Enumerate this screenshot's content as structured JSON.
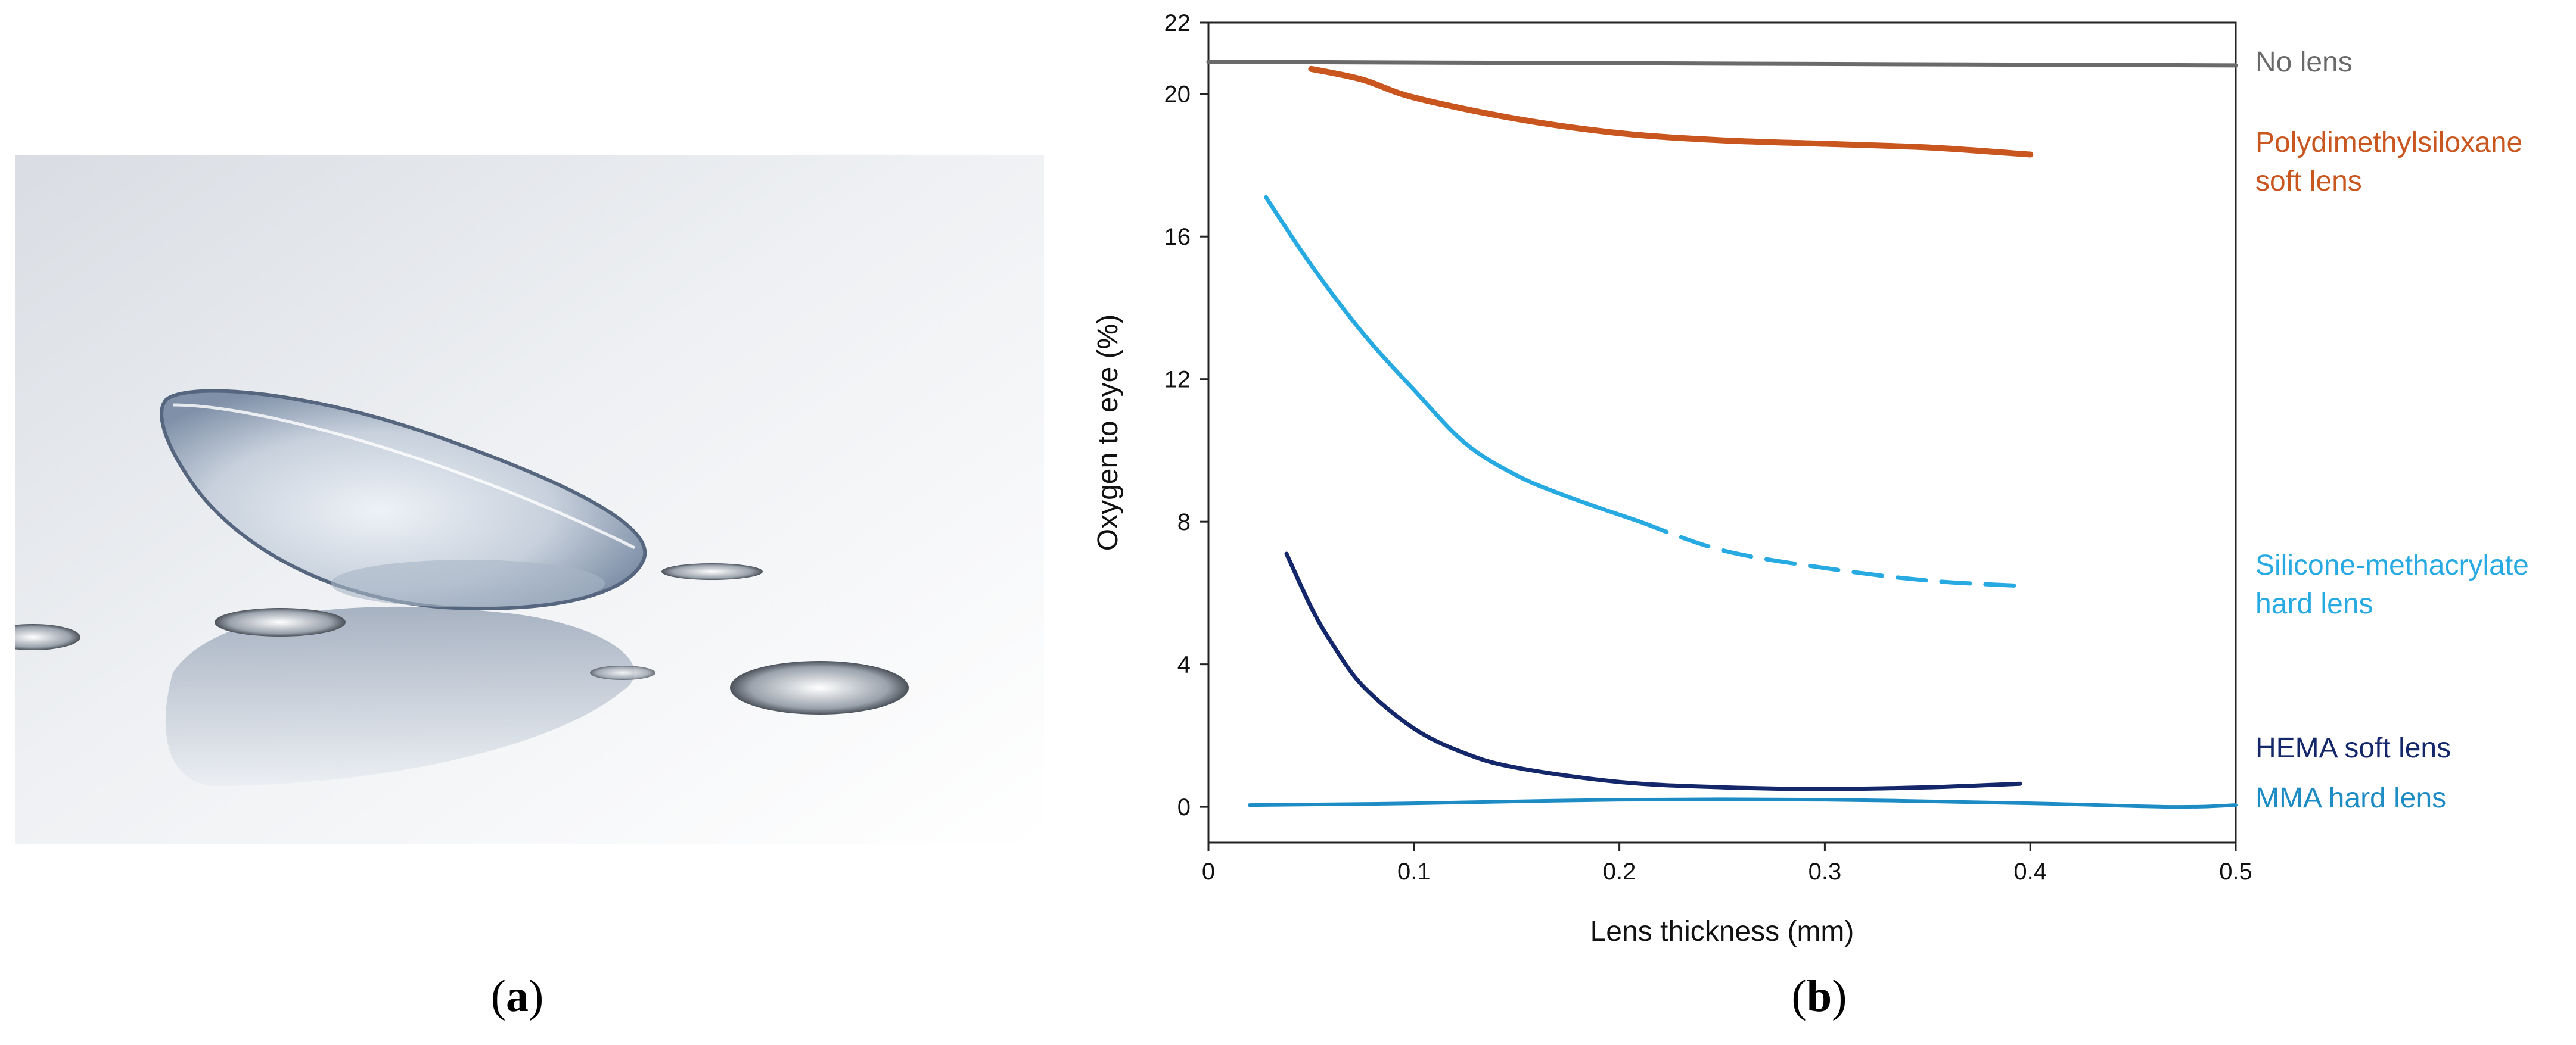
{
  "panels": {
    "a": {
      "label_letter": "a",
      "description_visible": false
    },
    "b": {
      "label_letter": "b"
    }
  },
  "colors": {
    "no_lens": "#6a6a6a",
    "pdms": "#c8561e",
    "silicone": "#27a9e1",
    "hema": "#14276b",
    "mma": "#1d8bc4"
  },
  "chart_data": {
    "type": "line",
    "title": "",
    "xlabel": "Lens thickness (mm)",
    "ylabel": "Oxygen to eye (%)",
    "xlim": [
      0,
      0.5
    ],
    "ylim": [
      -1,
      22
    ],
    "x_ticks": [
      0,
      0.1,
      0.2,
      0.3,
      0.4,
      0.5
    ],
    "x_tick_labels": [
      "0",
      "0.1",
      "0.2",
      "0.3",
      "0.4",
      "0.5"
    ],
    "y_ticks": [
      0,
      4,
      8,
      12,
      16,
      20,
      22
    ],
    "y_tick_labels": [
      "0",
      "4",
      "8",
      "12",
      "16",
      "20",
      "22"
    ],
    "grid": false,
    "legend": "inline labels at right",
    "series": [
      {
        "name": "No lens",
        "label_lines": [
          "No lens"
        ],
        "color_key": "no_lens",
        "style": "solid",
        "points": [
          [
            0,
            20.9
          ],
          [
            0.5,
            20.8
          ]
        ]
      },
      {
        "name": "Polydimethylsiloxane soft lens",
        "label_lines": [
          "Polydimethylsiloxane",
          "soft lens"
        ],
        "color_key": "pdms",
        "style": "solid",
        "points": [
          [
            0.05,
            20.7
          ],
          [
            0.075,
            20.4
          ],
          [
            0.1,
            19.9
          ],
          [
            0.15,
            19.3
          ],
          [
            0.2,
            18.9
          ],
          [
            0.25,
            18.7
          ],
          [
            0.3,
            18.6
          ],
          [
            0.35,
            18.5
          ],
          [
            0.4,
            18.3
          ]
        ]
      },
      {
        "name": "Silicone-methacrylate hard lens",
        "label_lines": [
          "Silicone-methacrylate",
          "hard lens"
        ],
        "color_key": "silicone",
        "style": "solid",
        "points": [
          [
            0.028,
            17.1
          ],
          [
            0.05,
            15.2
          ],
          [
            0.075,
            13.3
          ],
          [
            0.1,
            11.7
          ],
          [
            0.125,
            10.2
          ],
          [
            0.15,
            9.3
          ],
          [
            0.175,
            8.7
          ],
          [
            0.21,
            8.0
          ]
        ]
      },
      {
        "name": "Silicone-methacrylate hard lens (extrapolated)",
        "label_lines": [],
        "color_key": "silicone",
        "style": "dashed",
        "points": [
          [
            0.21,
            8.0
          ],
          [
            0.25,
            7.2
          ],
          [
            0.3,
            6.7
          ],
          [
            0.35,
            6.35
          ],
          [
            0.395,
            6.2
          ]
        ]
      },
      {
        "name": "HEMA soft lens",
        "label_lines": [
          "HEMA soft lens"
        ],
        "color_key": "hema",
        "style": "solid",
        "points": [
          [
            0.038,
            7.1
          ],
          [
            0.05,
            5.6
          ],
          [
            0.06,
            4.6
          ],
          [
            0.075,
            3.4
          ],
          [
            0.1,
            2.2
          ],
          [
            0.125,
            1.5
          ],
          [
            0.15,
            1.1
          ],
          [
            0.2,
            0.7
          ],
          [
            0.25,
            0.55
          ],
          [
            0.3,
            0.5
          ],
          [
            0.35,
            0.55
          ],
          [
            0.395,
            0.65
          ]
        ]
      },
      {
        "name": "MMA hard lens",
        "label_lines": [
          "MMA hard lens"
        ],
        "color_key": "mma",
        "style": "solid",
        "points": [
          [
            0.02,
            0.05
          ],
          [
            0.1,
            0.1
          ],
          [
            0.2,
            0.2
          ],
          [
            0.3,
            0.2
          ],
          [
            0.4,
            0.1
          ],
          [
            0.47,
            0.0
          ],
          [
            0.5,
            0.05
          ]
        ]
      }
    ]
  }
}
